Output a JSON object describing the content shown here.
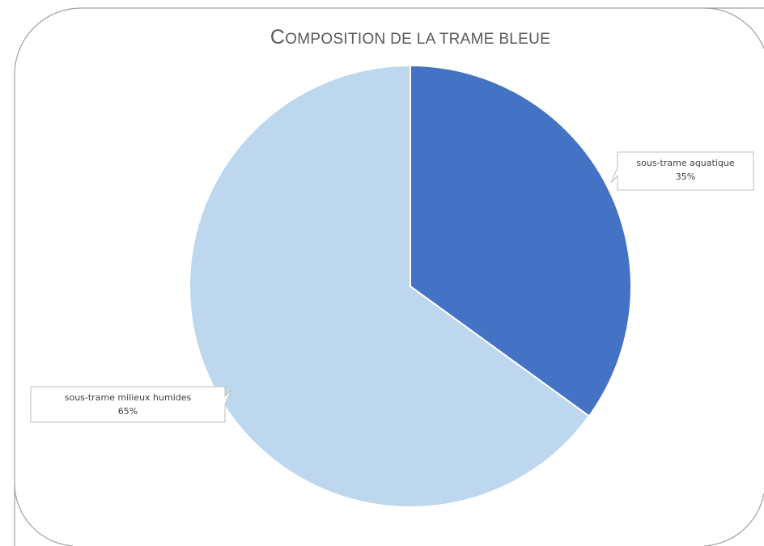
{
  "chart_data": {
    "type": "pie",
    "title": "COMPOSITION DE LA TRAME BLEUE",
    "categories": [
      "sous-trame aquatique",
      "sous-trame milieux humides"
    ],
    "values": [
      35,
      65
    ],
    "value_labels": [
      "35%",
      "65%"
    ],
    "colors": [
      "#4472c4",
      "#bdd7ee"
    ]
  }
}
